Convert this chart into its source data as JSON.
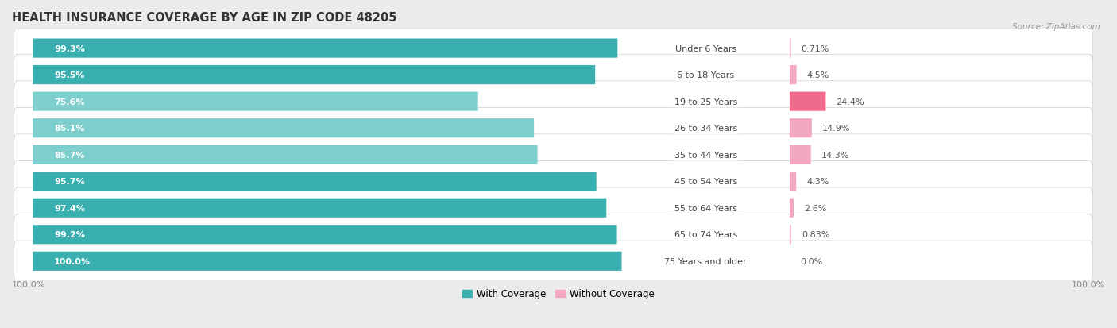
{
  "title": "HEALTH INSURANCE COVERAGE BY AGE IN ZIP CODE 48205",
  "source": "Source: ZipAtlas.com",
  "categories": [
    "Under 6 Years",
    "6 to 18 Years",
    "19 to 25 Years",
    "26 to 34 Years",
    "35 to 44 Years",
    "45 to 54 Years",
    "55 to 64 Years",
    "65 to 74 Years",
    "75 Years and older"
  ],
  "with_coverage": [
    99.3,
    95.5,
    75.6,
    85.1,
    85.7,
    95.7,
    97.4,
    99.2,
    100.0
  ],
  "without_coverage": [
    0.71,
    4.5,
    24.4,
    14.9,
    14.3,
    4.3,
    2.6,
    0.83,
    0.0
  ],
  "with_coverage_labels": [
    "99.3%",
    "95.5%",
    "75.6%",
    "85.1%",
    "85.7%",
    "95.7%",
    "97.4%",
    "99.2%",
    "100.0%"
  ],
  "without_coverage_labels": [
    "0.71%",
    "4.5%",
    "24.4%",
    "14.9%",
    "14.3%",
    "4.3%",
    "2.6%",
    "0.83%",
    "0.0%"
  ],
  "color_with_dark": "#3AAFB0",
  "color_with_light": "#7ECECE",
  "color_without_dark": "#EE6B8E",
  "color_without_light": "#F4A8C0",
  "bg_color": "#EBEBEB",
  "row_bg_color": "#FFFFFF",
  "title_fontsize": 10.5,
  "bar_label_fontsize": 8,
  "cat_label_fontsize": 8,
  "pct_label_fontsize": 8,
  "axis_label_fontsize": 8,
  "legend_fontsize": 8.5,
  "total_width": 100.0,
  "x_axis_label_left": "100.0%",
  "x_axis_label_right": "100.0%"
}
